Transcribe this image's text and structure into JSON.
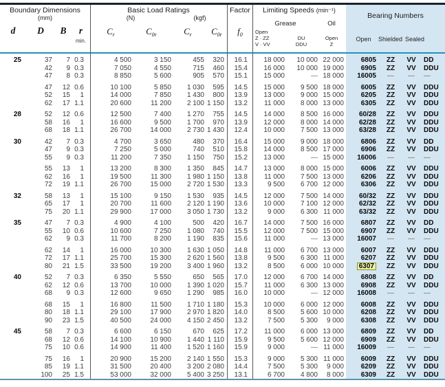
{
  "header": {
    "boundary_dimensions": {
      "title": "Boundary Dimensions",
      "subtitle": "(mm)",
      "symbols": [
        "d",
        "D",
        "B",
        "r"
      ],
      "r_note": "min."
    },
    "basic_load_ratings": {
      "title": "Basic Load Ratings",
      "unit_n": "(N)",
      "unit_kgf": "(kgf)",
      "symbols": [
        {
          "base": "C",
          "sub": "r"
        },
        {
          "base": "C",
          "sub": "0r"
        },
        {
          "base": "C",
          "sub": "r"
        },
        {
          "base": "C",
          "sub": "0r"
        }
      ]
    },
    "factor": {
      "title": "Factor",
      "symbol": {
        "base": "f",
        "sub": "0"
      }
    },
    "limiting_speeds": {
      "title": "Limiting Speeds",
      "unit": "(min⁻¹)",
      "grease_label": "Grease",
      "oil_label": "Oil",
      "col1_lines": "Open\nZ · ZZ\nV · VV",
      "col2_lines": "DU\nDDU",
      "col3_lines": "Open\nZ"
    },
    "bearing_numbers": {
      "title": "Bearing Numbers",
      "sub": [
        "Open",
        "Shielded",
        "Sealed"
      ]
    }
  },
  "colors": {
    "blue_block": "#d4e6f2",
    "header_rule": "#2191bf",
    "highlight_bg": "#ebf0a4",
    "highlight_border": "#8a9130"
  },
  "highlighted_bearing": "6307",
  "row_groups": [
    [
      {
        "cells": [
          "25",
          "37",
          "7",
          "0.3",
          "4 500",
          "3 150",
          "455",
          "320",
          "16.1",
          "18 000",
          "10 000",
          "22 000",
          "6805",
          "ZZ",
          "VV",
          "DD"
        ]
      },
      {
        "cells": [
          "",
          "42",
          "9",
          "0.3",
          "7 050",
          "4 550",
          "715",
          "460",
          "15.4",
          "16 000",
          "10 000",
          "19 000",
          "6905",
          "ZZ",
          "VV",
          "DDU"
        ]
      },
      {
        "cells": [
          "",
          "47",
          "8",
          "0.3",
          "8 850",
          "5 600",
          "905",
          "570",
          "15.1",
          "15 000",
          "—",
          "18 000",
          "16005",
          "—",
          "—",
          "—"
        ]
      }
    ],
    [
      {
        "cells": [
          "",
          "47",
          "12",
          "0.6",
          "10 100",
          "5 850",
          "1 030",
          "595",
          "14.5",
          "15 000",
          "9 500",
          "18 000",
          "6005",
          "ZZ",
          "VV",
          "DDU"
        ]
      },
      {
        "cells": [
          "",
          "52",
          "15",
          "1",
          "14 000",
          "7 850",
          "1 430",
          "800",
          "13.9",
          "13 000",
          "9 000",
          "15 000",
          "6205",
          "ZZ",
          "VV",
          "DDU"
        ]
      },
      {
        "cells": [
          "",
          "62",
          "17",
          "1.1",
          "20 600",
          "11 200",
          "2 100",
          "1 150",
          "13.2",
          "11 000",
          "8 000",
          "13 000",
          "6305",
          "ZZ",
          "VV",
          "DDU"
        ]
      }
    ],
    [
      {
        "cells": [
          "28",
          "52",
          "12",
          "0.6",
          "12 500",
          "7 400",
          "1 270",
          "755",
          "14.5",
          "14 000",
          "8 500",
          "16 000",
          "60/28",
          "ZZ",
          "VV",
          "DDU"
        ]
      },
      {
        "cells": [
          "",
          "58",
          "16",
          "1",
          "16 600",
          "9 500",
          "1 700",
          "970",
          "13.9",
          "12 000",
          "8 000",
          "14 000",
          "62/28",
          "ZZ",
          "VV",
          "DDU"
        ]
      },
      {
        "cells": [
          "",
          "68",
          "18",
          "1.1",
          "26 700",
          "14 000",
          "2 730",
          "1 430",
          "12.4",
          "10 000",
          "7 500",
          "13 000",
          "63/28",
          "ZZ",
          "VV",
          "DDU"
        ]
      }
    ],
    [
      {
        "cells": [
          "30",
          "42",
          "7",
          "0.3",
          "4 700",
          "3 650",
          "480",
          "370",
          "16.4",
          "15 000",
          "9 000",
          "18 000",
          "6806",
          "ZZ",
          "VV",
          "DD"
        ]
      },
      {
        "cells": [
          "",
          "47",
          "9",
          "0.3",
          "7 250",
          "5 000",
          "740",
          "510",
          "15.8",
          "14 000",
          "8 500",
          "17 000",
          "6906",
          "ZZ",
          "VV",
          "DDU"
        ]
      },
      {
        "cells": [
          "",
          "55",
          "9",
          "0.3",
          "11 200",
          "7 350",
          "1 150",
          "750",
          "15.2",
          "13 000",
          "—",
          "15 000",
          "16006",
          "—",
          "—",
          "—"
        ]
      }
    ],
    [
      {
        "cells": [
          "",
          "55",
          "13",
          "1",
          "13 200",
          "8 300",
          "1 350",
          "845",
          "14.7",
          "13 000",
          "8 000",
          "15 000",
          "6006",
          "ZZ",
          "VV",
          "DDU"
        ]
      },
      {
        "cells": [
          "",
          "62",
          "16",
          "1",
          "19 500",
          "11 300",
          "1 980",
          "1 150",
          "13.8",
          "11 000",
          "7 500",
          "13 000",
          "6206",
          "ZZ",
          "VV",
          "DDU"
        ]
      },
      {
        "cells": [
          "",
          "72",
          "19",
          "1.1",
          "26 700",
          "15 000",
          "2 720",
          "1 530",
          "13.3",
          "9 500",
          "6 700",
          "12 000",
          "6306",
          "ZZ",
          "VV",
          "DDU"
        ]
      }
    ],
    [
      {
        "cells": [
          "32",
          "58",
          "13",
          "1",
          "15 100",
          "9 150",
          "1 530",
          "935",
          "14.5",
          "12 000",
          "7 500",
          "14 000",
          "60/32",
          "ZZ",
          "VV",
          "DDU"
        ]
      },
      {
        "cells": [
          "",
          "65",
          "17",
          "1",
          "20 700",
          "11 600",
          "2 120",
          "1 190",
          "13.6",
          "10 000",
          "7 100",
          "12 000",
          "62/32",
          "ZZ",
          "VV",
          "DDU"
        ]
      },
      {
        "cells": [
          "",
          "75",
          "20",
          "1.1",
          "29 900",
          "17 000",
          "3 050",
          "1 730",
          "13.2",
          "9 000",
          "6 300",
          "11 000",
          "63/32",
          "ZZ",
          "VV",
          "DDU"
        ]
      }
    ],
    [
      {
        "cells": [
          "35",
          "47",
          "7",
          "0.3",
          "4 900",
          "4 100",
          "500",
          "420",
          "16.7",
          "14 000",
          "7 500",
          "16 000",
          "6807",
          "ZZ",
          "VV",
          "DD"
        ]
      },
      {
        "cells": [
          "",
          "55",
          "10",
          "0.6",
          "10 600",
          "7 250",
          "1 080",
          "740",
          "15.5",
          "12 000",
          "7 500",
          "15 000",
          "6907",
          "ZZ",
          "VV",
          "DDU"
        ]
      },
      {
        "cells": [
          "",
          "62",
          "9",
          "0.3",
          "11 700",
          "8 200",
          "1 190",
          "835",
          "15.6",
          "11 000",
          "—",
          "13 000",
          "16007",
          "—",
          "—",
          "—"
        ]
      }
    ],
    [
      {
        "cells": [
          "",
          "62",
          "14",
          "1",
          "16 000",
          "10 300",
          "1 630",
          "1 050",
          "14.8",
          "11 000",
          "6 700",
          "13 000",
          "6007",
          "ZZ",
          "VV",
          "DDU"
        ]
      },
      {
        "cells": [
          "",
          "72",
          "17",
          "1.1",
          "25 700",
          "15 300",
          "2 620",
          "1 560",
          "13.8",
          "9 500",
          "6 300",
          "11 000",
          "6207",
          "ZZ",
          "VV",
          "DDU"
        ]
      },
      {
        "cells": [
          "",
          "80",
          "21",
          "1.5",
          "33 500",
          "19 200",
          "3 400",
          "1 960",
          "13.2",
          "8 500",
          "6 000",
          "10 000",
          "6307",
          "ZZ",
          "VV",
          "DDU"
        ],
        "highlight": true
      }
    ],
    [
      {
        "cells": [
          "40",
          "52",
          "7",
          "0.3",
          "6 350",
          "5 550",
          "650",
          "565",
          "17.0",
          "12 000",
          "6 700",
          "14 000",
          "6808",
          "ZZ",
          "VV",
          "DD"
        ]
      },
      {
        "cells": [
          "",
          "62",
          "12",
          "0.6",
          "13 700",
          "10 000",
          "1 390",
          "1 020",
          "15.7",
          "11 000",
          "6 300",
          "13 000",
          "6908",
          "ZZ",
          "VV",
          "DDU"
        ]
      },
      {
        "cells": [
          "",
          "68",
          "9",
          "0.3",
          "12 600",
          "9 650",
          "1 290",
          "985",
          "16.0",
          "10 000",
          "—",
          "12 000",
          "16008",
          "—",
          "—",
          "—"
        ]
      }
    ],
    [
      {
        "cells": [
          "",
          "68",
          "15",
          "1",
          "16 800",
          "11 500",
          "1 710",
          "1 180",
          "15.3",
          "10 000",
          "6 000",
          "12 000",
          "6008",
          "ZZ",
          "VV",
          "DDU"
        ]
      },
      {
        "cells": [
          "",
          "80",
          "18",
          "1.1",
          "29 100",
          "17 900",
          "2 970",
          "1 820",
          "14.0",
          "8 500",
          "5 600",
          "10 000",
          "6208",
          "ZZ",
          "VV",
          "DDU"
        ]
      },
      {
        "cells": [
          "",
          "90",
          "23",
          "1.5",
          "40 500",
          "24 000",
          "4 150",
          "2 450",
          "13.2",
          "7 500",
          "5 300",
          "9 000",
          "6308",
          "ZZ",
          "VV",
          "DDU"
        ]
      }
    ],
    [
      {
        "cells": [
          "45",
          "58",
          "7",
          "0.3",
          "6 600",
          "6 150",
          "670",
          "625",
          "17.2",
          "11 000",
          "6 000",
          "13 000",
          "6809",
          "ZZ",
          "VV",
          "DD"
        ]
      },
      {
        "cells": [
          "",
          "68",
          "12",
          "0.6",
          "14 100",
          "10 900",
          "1 440",
          "1 110",
          "15.9",
          "9 500",
          "5 600",
          "12 000",
          "6909",
          "ZZ",
          "VV",
          "DDU"
        ]
      },
      {
        "cells": [
          "",
          "75",
          "10",
          "0.6",
          "14 900",
          "11 400",
          "1 520",
          "1 160",
          "15.9",
          "9 000",
          "—",
          "11 000",
          "16009",
          "—",
          "—",
          "—"
        ]
      }
    ],
    [
      {
        "cells": [
          "",
          "75",
          "16",
          "1",
          "20 900",
          "15 200",
          "2 140",
          "1 550",
          "15.3",
          "9 000",
          "5 300",
          "11 000",
          "6009",
          "ZZ",
          "VV",
          "DDU"
        ]
      },
      {
        "cells": [
          "",
          "85",
          "19",
          "1.1",
          "31 500",
          "20 400",
          "3 200",
          "2 080",
          "14.4",
          "7 500",
          "5 300",
          "9 000",
          "6209",
          "ZZ",
          "VV",
          "DDU"
        ]
      },
      {
        "cells": [
          "",
          "100",
          "25",
          "1.5",
          "53 000",
          "32 000",
          "5 400",
          "3 250",
          "13.1",
          "6 700",
          "4 800",
          "8 000",
          "6309",
          "ZZ",
          "VV",
          "DDU"
        ]
      }
    ]
  ]
}
